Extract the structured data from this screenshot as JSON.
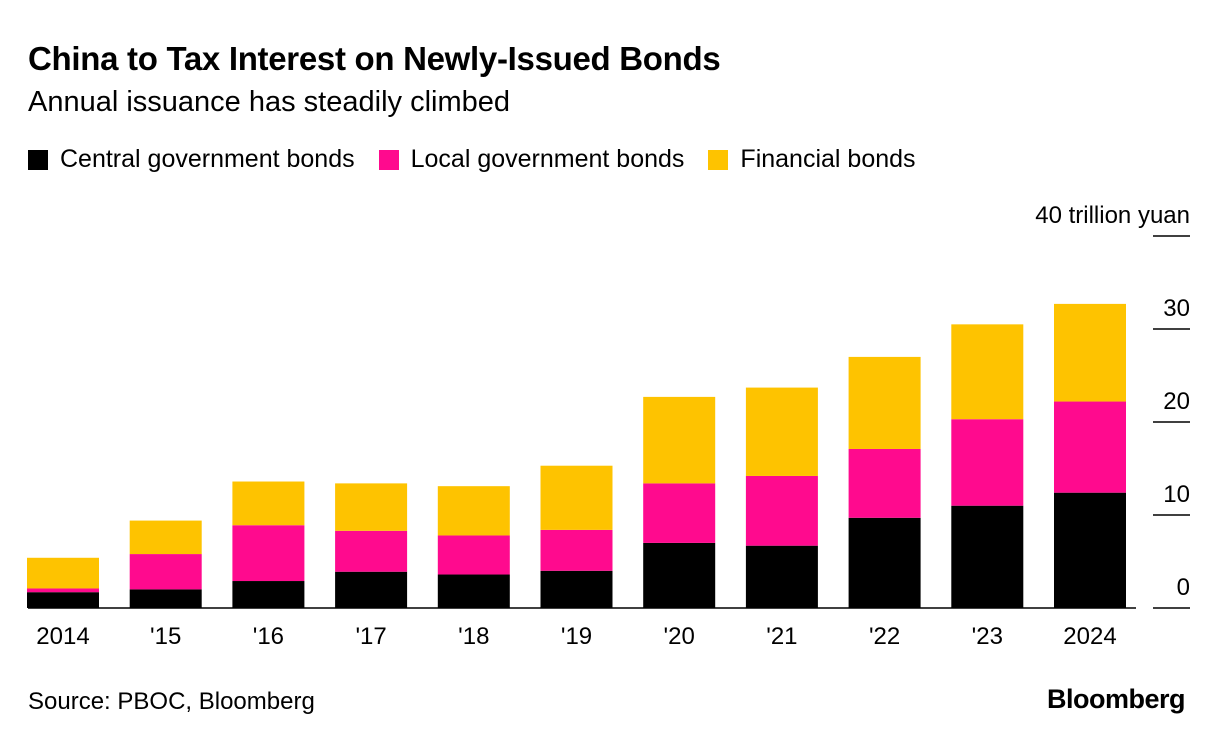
{
  "title": "China to Tax Interest on Newly-Issued Bonds",
  "subtitle": "Annual issuance has steadily climbed",
  "source": "Source: PBOC, Bloomberg",
  "logo": "Bloomberg",
  "colors": {
    "central": "#000000",
    "local": "#ff0a8e",
    "financial": "#fec300"
  },
  "chart_data": {
    "type": "bar",
    "stacked": true,
    "categories": [
      "2014",
      "'15",
      "'16",
      "'17",
      "'18",
      "'19",
      "'20",
      "'21",
      "'22",
      "'23",
      "2024"
    ],
    "series": [
      {
        "name": "Central government bonds",
        "key": "central",
        "values": [
          1.7,
          2.0,
          2.9,
          3.9,
          3.6,
          4.0,
          7.0,
          6.7,
          9.7,
          11.0,
          12.4
        ]
      },
      {
        "name": "Local government bonds",
        "key": "local",
        "values": [
          0.4,
          3.8,
          6.0,
          4.4,
          4.2,
          4.4,
          6.4,
          7.5,
          7.4,
          9.3,
          9.8
        ]
      },
      {
        "name": "Financial bonds",
        "key": "financial",
        "values": [
          3.3,
          3.6,
          4.7,
          5.1,
          5.3,
          6.9,
          9.3,
          9.5,
          9.9,
          10.2,
          10.5
        ]
      }
    ],
    "y_ticks": [
      0,
      10,
      20,
      30,
      40
    ],
    "y_tick_labels": [
      "0",
      "10",
      "20",
      "30",
      "40 trillion yuan"
    ],
    "ylim": [
      0,
      40
    ],
    "legend_position": "top-left",
    "axis_side": "right",
    "grid": false
  }
}
